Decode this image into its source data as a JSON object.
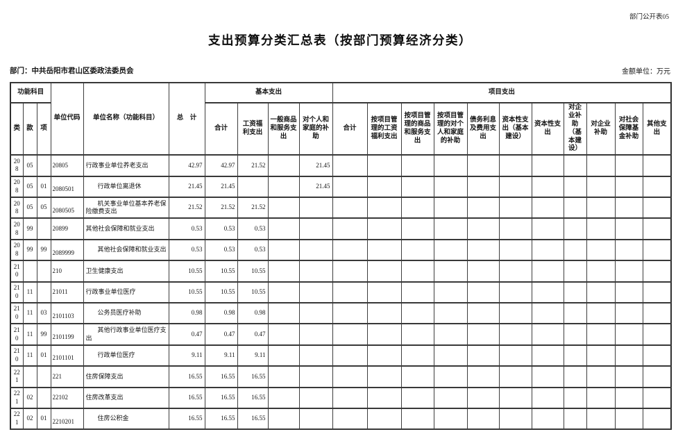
{
  "page": {
    "doc_label": "部门公开表05",
    "title": "支出预算分类汇总表（按部门预算经济分类）",
    "department_label": "部门：中共岳阳市君山区委政法委员会",
    "unit_label": "金额单位：万元"
  },
  "table": {
    "header": {
      "func_group": "功能科目",
      "cols_func": [
        "类",
        "款",
        "项"
      ],
      "unit_code": "单位代码",
      "unit_name": "单位名称（功能科目）",
      "total": "总　计",
      "basic_group": "基本支出",
      "basic_cols": [
        "合计",
        "工资福利支出",
        "一般商品和服务支出",
        "对个人和家庭的补助"
      ],
      "project_group": "项目支出",
      "project_cols": [
        "合计",
        "按项目管理的工资福利支出",
        "按项目管理的商品和服务支出",
        "按项目管理的对个人和家庭的补助",
        "债务利息及费用支出",
        "资本性支出（基本建设）",
        "资本性支出",
        "对企业补助（基本建设）",
        "对企业补助",
        "对社会保障基金补助",
        "其他支出"
      ]
    },
    "rows": [
      {
        "cls": "208",
        "sec": "05",
        "itm": "",
        "code": "20805",
        "name": "行政事业单位养老支出",
        "sub": false,
        "values": [
          "42.97",
          "42.97",
          "21.52",
          "",
          "21.45",
          "",
          "",
          "",
          "",
          "",
          "",
          "",
          "",
          "",
          "",
          ""
        ]
      },
      {
        "cls": "208",
        "sec": "05",
        "itm": "01",
        "code": "2080501",
        "name": "行政单位离退休",
        "sub": true,
        "values": [
          "21.45",
          "21.45",
          "",
          "",
          "21.45",
          "",
          "",
          "",
          "",
          "",
          "",
          "",
          "",
          "",
          "",
          ""
        ]
      },
      {
        "cls": "208",
        "sec": "05",
        "itm": "05",
        "code": "2080505",
        "name": "机关事业单位基本养老保险缴费支出",
        "sub": true,
        "values": [
          "21.52",
          "21.52",
          "21.52",
          "",
          "",
          "",
          "",
          "",
          "",
          "",
          "",
          "",
          "",
          "",
          "",
          ""
        ]
      },
      {
        "cls": "208",
        "sec": "99",
        "itm": "",
        "code": "20899",
        "name": "其他社会保障和就业支出",
        "sub": false,
        "values": [
          "0.53",
          "0.53",
          "0.53",
          "",
          "",
          "",
          "",
          "",
          "",
          "",
          "",
          "",
          "",
          "",
          "",
          ""
        ]
      },
      {
        "cls": "208",
        "sec": "99",
        "itm": "99",
        "code": "2089999",
        "name": "其他社会保障和就业支出",
        "sub": true,
        "values": [
          "0.53",
          "0.53",
          "0.53",
          "",
          "",
          "",
          "",
          "",
          "",
          "",
          "",
          "",
          "",
          "",
          "",
          ""
        ]
      },
      {
        "cls": "210",
        "sec": "",
        "itm": "",
        "code": "210",
        "name": "卫生健康支出",
        "sub": false,
        "values": [
          "10.55",
          "10.55",
          "10.55",
          "",
          "",
          "",
          "",
          "",
          "",
          "",
          "",
          "",
          "",
          "",
          "",
          ""
        ]
      },
      {
        "cls": "210",
        "sec": "11",
        "itm": "",
        "code": "21011",
        "name": "行政事业单位医疗",
        "sub": false,
        "values": [
          "10.55",
          "10.55",
          "10.55",
          "",
          "",
          "",
          "",
          "",
          "",
          "",
          "",
          "",
          "",
          "",
          "",
          ""
        ]
      },
      {
        "cls": "210",
        "sec": "11",
        "itm": "03",
        "code": "2101103",
        "name": "公务员医疗补助",
        "sub": true,
        "values": [
          "0.98",
          "0.98",
          "0.98",
          "",
          "",
          "",
          "",
          "",
          "",
          "",
          "",
          "",
          "",
          "",
          "",
          ""
        ]
      },
      {
        "cls": "210",
        "sec": "11",
        "itm": "99",
        "code": "2101199",
        "name": "其他行政事业单位医疗支出",
        "sub": true,
        "values": [
          "0.47",
          "0.47",
          "0.47",
          "",
          "",
          "",
          "",
          "",
          "",
          "",
          "",
          "",
          "",
          "",
          "",
          ""
        ]
      },
      {
        "cls": "210",
        "sec": "11",
        "itm": "01",
        "code": "2101101",
        "name": "行政单位医疗",
        "sub": true,
        "values": [
          "9.11",
          "9.11",
          "9.11",
          "",
          "",
          "",
          "",
          "",
          "",
          "",
          "",
          "",
          "",
          "",
          "",
          ""
        ]
      },
      {
        "cls": "221",
        "sec": "",
        "itm": "",
        "code": "221",
        "name": "住房保障支出",
        "sub": false,
        "values": [
          "16.55",
          "16.55",
          "16.55",
          "",
          "",
          "",
          "",
          "",
          "",
          "",
          "",
          "",
          "",
          "",
          "",
          ""
        ]
      },
      {
        "cls": "221",
        "sec": "02",
        "itm": "",
        "code": "22102",
        "name": "住房改革支出",
        "sub": false,
        "values": [
          "16.55",
          "16.55",
          "16.55",
          "",
          "",
          "",
          "",
          "",
          "",
          "",
          "",
          "",
          "",
          "",
          "",
          ""
        ]
      },
      {
        "cls": "221",
        "sec": "02",
        "itm": "01",
        "code": "2210201",
        "name": "住房公积金",
        "sub": true,
        "values": [
          "16.55",
          "16.55",
          "16.55",
          "",
          "",
          "",
          "",
          "",
          "",
          "",
          "",
          "",
          "",
          "",
          "",
          ""
        ]
      }
    ]
  }
}
